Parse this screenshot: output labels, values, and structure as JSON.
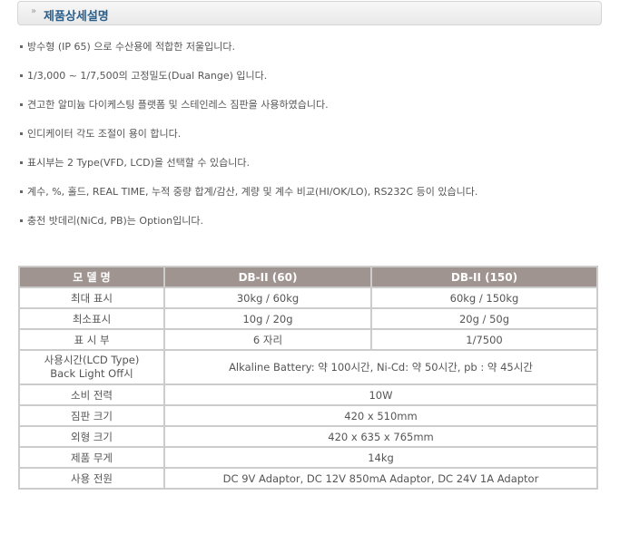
{
  "header": {
    "title": "제품상세설명"
  },
  "features": [
    "방수형 (IP 65) 으로 수산용에 적합한 저울입니다.",
    "1/3,000 ~ 1/7,500의 고정밀도(Dual Range) 입니다.",
    "견고한 알미늄 다이케스팅 플랫폼 및 스테인레스 짐판을 사용하였습니다.",
    "인디케이터 각도 조절이 용이 합니다.",
    "표시부는 2 Type(VFD, LCD)을 선택할 수 있습니다.",
    "계수, %, 홀드, REAL TIME, 누적 중량 합계/감산, 계량 및 계수 비교(HI/OK/LO), RS232C 등이 있습니다.",
    "충전 밧데리(NiCd, PB)는 Option입니다."
  ],
  "table": {
    "headers": [
      "모 델 명",
      "DB-II (60)",
      "DB-II (150)"
    ],
    "rows": [
      [
        "최대 표시",
        "30kg / 60kg",
        "60kg / 150kg"
      ],
      [
        "최소표시",
        "10g / 20g",
        "20g / 50g"
      ],
      [
        "표 시 부",
        "6 자리",
        "1/7500"
      ],
      [
        "사용시간(LCD Type) Back Light Off시",
        "Alkaline Battery: 약 100시간, Ni-Cd: 약 50시간, pb : 약 45시간"
      ],
      [
        "소비 전력",
        "10W"
      ],
      [
        "짐판 크기",
        "420 x 510mm"
      ],
      [
        "외형 크기",
        "420 x 635 x 765mm"
      ],
      [
        "제품 무게",
        "14kg"
      ],
      [
        "사용 전원",
        "DC 9V Adaptor, DC 12V 850mA Adaptor, DC 24V 1A Adaptor"
      ]
    ]
  }
}
